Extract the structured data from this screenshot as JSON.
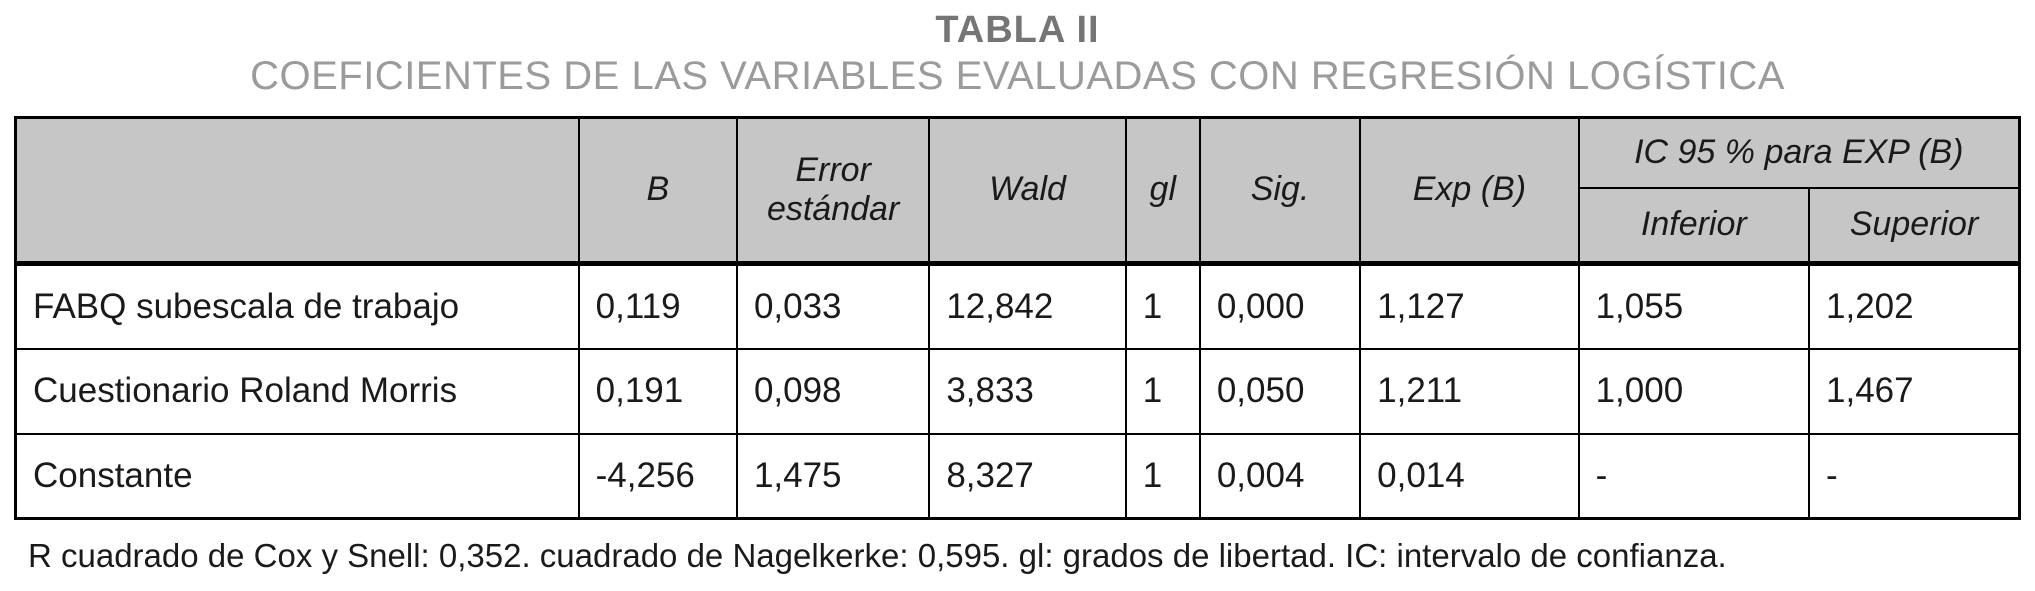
{
  "title": "TABLA II",
  "subtitle": "COEFICIENTES DE LAS VARIABLES EVALUADAS CON REGRESIÓN LOGÍSTICA",
  "table": {
    "headers": {
      "row_label": "",
      "b": "B",
      "std_error": "Error estándar",
      "wald": "Wald",
      "gl": "gl",
      "sig": "Sig.",
      "exp_b": "Exp (B)",
      "ic_group": "IC 95 % para EXP (B)",
      "inferior": "Inferior",
      "superior": "Superior"
    },
    "rows": [
      {
        "label": "FABQ subescala de trabajo",
        "b": "0,119",
        "std_error": "0,033",
        "wald": "12,842",
        "gl": "1",
        "sig": "0,000",
        "exp_b": "1,127",
        "inferior": "1,055",
        "superior": "1,202"
      },
      {
        "label": "Cuestionario Roland Morris",
        "b": "0,191",
        "std_error": "0,098",
        "wald": "3,833",
        "gl": "1",
        "sig": "0,050",
        "exp_b": "1,211",
        "inferior": "1,000",
        "superior": "1,467"
      },
      {
        "label": "Constante",
        "b": "-4,256",
        "std_error": "1,475",
        "wald": "8,327",
        "gl": "1",
        "sig": "0,004",
        "exp_b": "0,014",
        "inferior": "-",
        "superior": "-"
      }
    ]
  },
  "footnote": "R cuadrado de Cox y Snell: 0,352. cuadrado de Nagelkerke: 0,595. gl: grados de libertad. IC: intervalo de confianza.",
  "colors": {
    "header_bg": "#c6c6c6",
    "border": "#000000",
    "title": "#757575",
    "subtitle": "#9b9b9b",
    "text": "#1a1a1a"
  }
}
